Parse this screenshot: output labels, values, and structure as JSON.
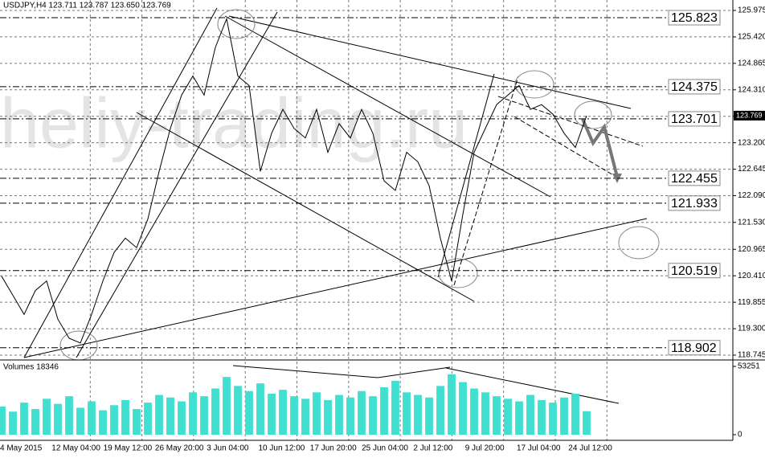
{
  "chart_data": {
    "type": "line",
    "title": "USDJPY,H4 123.711 123.787 123.650 123.769",
    "watermark": "heliy-trading.ru",
    "x_labels": [
      "4 May 2015",
      "12 May 04:00",
      "19 May 12:00",
      "26 May 20:00",
      "3 Jun 04:00",
      "10 Jun 12:00",
      "17 Jun 20:00",
      "25 Jun 04:00",
      "2 Jul 12:00",
      "9 Jul 20:00",
      "17 Jul 04:00",
      "24 Jul 12:00"
    ],
    "ylim": [
      118.661,
      126.194
    ],
    "yticks": [
      125.975,
      {
        "value": 125.42,
        "label": "125.420"
      },
      124.865,
      {
        "value": 124.31,
        "label": "124.310"
      },
      123.755,
      {
        "value": 123.2,
        "label": "123.200"
      },
      122.645,
      {
        "value": 122.09,
        "label": "122.090"
      },
      {
        "value": 121.53,
        "label": "121.530"
      },
      120.965,
      {
        "value": 120.41,
        "label": "120.410"
      },
      119.855,
      {
        "value": 119.3,
        "label": "119.300"
      },
      118.745
    ],
    "grid": true,
    "series": [
      {
        "name": "USDJPY,H4",
        "color": "#000000",
        "values": [
          120.4,
          120.0,
          119.6,
          120.1,
          120.3,
          119.5,
          119.1,
          119.0,
          119.6,
          120.3,
          120.9,
          121.2,
          121.0,
          121.6,
          122.6,
          123.5,
          124.2,
          124.6,
          124.2,
          125.2,
          125.8,
          124.6,
          124.4,
          122.6,
          123.4,
          123.9,
          123.5,
          123.3,
          123.9,
          123.0,
          123.6,
          123.3,
          123.9,
          123.4,
          122.4,
          122.2,
          123.0,
          122.8,
          122.3,
          121.2,
          120.3,
          121.7,
          123.0,
          123.5,
          124.0,
          124.2,
          124.4,
          123.9,
          124.0,
          123.8,
          123.4,
          123.1,
          123.769
        ]
      }
    ],
    "levels": [
      125.823,
      124.375,
      123.701,
      122.455,
      121.933,
      120.519,
      118.902
    ],
    "current_price": 123.769,
    "volume": {
      "title": "Volumes 18346",
      "color": "#40e0d0",
      "ylim": [
        0,
        53251
      ],
      "yticks": [
        0,
        53251
      ],
      "values": [
        22000,
        18000,
        25000,
        20000,
        28000,
        24000,
        30000,
        21000,
        26000,
        19000,
        23000,
        27000,
        20000,
        25000,
        31000,
        29000,
        26000,
        33000,
        30000,
        36000,
        45000,
        38000,
        34000,
        40000,
        32000,
        35000,
        30000,
        28000,
        33000,
        27000,
        31000,
        29000,
        34000,
        30000,
        37000,
        42000,
        33000,
        31000,
        29000,
        38000,
        47000,
        41000,
        36000,
        33000,
        30000,
        28000,
        26000,
        31000,
        27000,
        25000,
        29000,
        32000,
        18346
      ]
    }
  }
}
